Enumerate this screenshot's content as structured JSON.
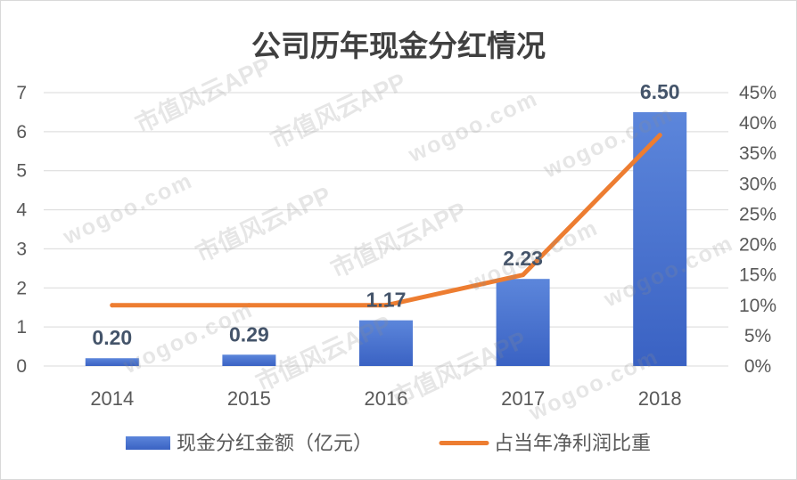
{
  "colors": {
    "bar_top": "#5C86DB",
    "bar_bottom": "#3A62C3",
    "line": "#ED7D31",
    "grid": "#D9D9D9",
    "frame": "#D9D9D9",
    "axis_text": "#595959",
    "title_text": "#404040",
    "data_label_text": "#44546A"
  },
  "watermark": {
    "cn": "市值风云APP",
    "en": "wogoo.com"
  },
  "chart_data": {
    "type": "bar",
    "title": "公司历年现金分红情况",
    "categories": [
      "2014",
      "2015",
      "2016",
      "2017",
      "2018"
    ],
    "series": [
      {
        "name": "现金分红金额（亿元）",
        "type": "bar",
        "axis": "left",
        "values": [
          0.2,
          0.29,
          1.17,
          2.23,
          6.5
        ],
        "labels": [
          "0.20",
          "0.29",
          "1.17",
          "2.23",
          "6.50"
        ]
      },
      {
        "name": "占当年净利润比重",
        "type": "line",
        "axis": "right",
        "values": [
          10,
          10,
          10,
          15,
          38
        ]
      }
    ],
    "y_left": {
      "range": [
        0,
        7
      ],
      "ticks": [
        "0",
        "1",
        "2",
        "3",
        "4",
        "5",
        "6",
        "7"
      ]
    },
    "y_right": {
      "range": [
        0,
        45
      ],
      "ticks": [
        "0%",
        "5%",
        "10%",
        "15%",
        "20%",
        "25%",
        "30%",
        "35%",
        "40%",
        "45%"
      ]
    },
    "grid": true,
    "legend_position": "bottom"
  }
}
